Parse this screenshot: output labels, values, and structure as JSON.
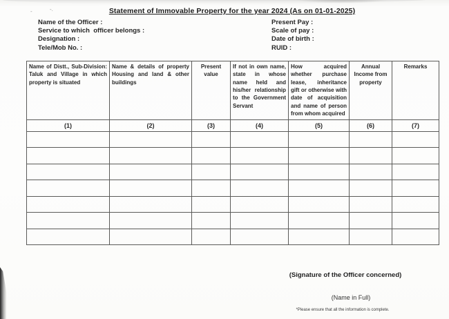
{
  "title": "Statement of Immovable Property  for the year 2024 (As on 01-01-2025)",
  "officer_info": {
    "left": [
      "Name of the Officer :",
      "Service to which  officer belongs :",
      "Designation :",
      "Tele/Mob No. :"
    ],
    "right": [
      "Present Pay :",
      "Scale of pay :",
      "Date of birth :",
      "RUID :"
    ]
  },
  "table": {
    "headers": [
      "Name of Distt., Sub-Division: Taluk and Village in which property is situated",
      "Name & details of property Housing and land & other buildings",
      "Present value",
      "If not in own name, state in whose name held and his/her relationship to the Government Servant",
      "How acquired whether purchase lease, inheritance gift or otherwise with date of acquisition and name of person from whom acquired",
      "Annual Income from property",
      "Remarks"
    ],
    "numbers": [
      "(1)",
      "(2)",
      "(3)",
      "(4)",
      "(5)",
      "(6)",
      "(7)"
    ],
    "empty_row_count": 7,
    "column_count": 7
  },
  "footer": {
    "signature": "(Signature of the Officer concerned)",
    "name": "(Name in Full)",
    "note": "*Please ensure that all the information is complete."
  },
  "artifacts": {
    "pencil_mark_1": "-",
    "pencil_mark_2": "-."
  },
  "colors": {
    "paper": "#fdfdfc",
    "line": "#5a5a58",
    "text": "#262626"
  }
}
